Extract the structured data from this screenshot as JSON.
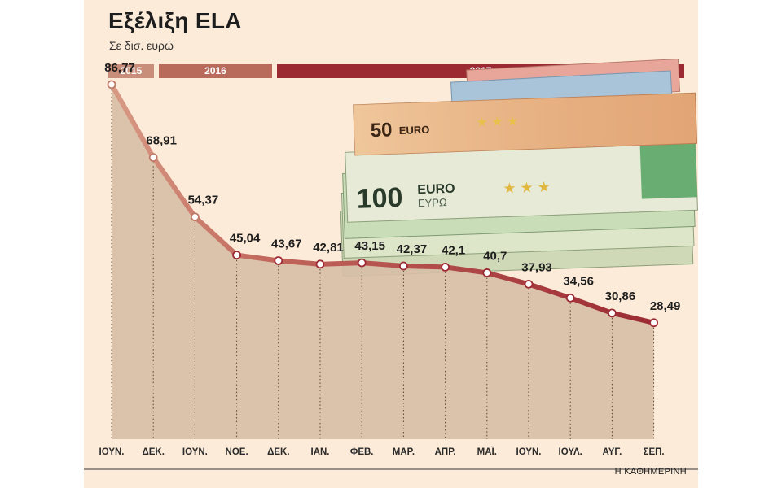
{
  "chart_data": {
    "type": "area",
    "title": "Εξέλιξη ELA",
    "subtitle": "Σε δισ. ευρώ",
    "years": [
      {
        "label": "2015",
        "start": 0,
        "end": 0
      },
      {
        "label": "2016",
        "start": 1,
        "end": 3
      },
      {
        "label": "2017",
        "start": 4,
        "end": 13
      }
    ],
    "categories": [
      "ΙΟΥΝ.",
      "ΔΕΚ.",
      "ΙΟΥΝ.",
      "ΝΟΕ.",
      "ΔΕΚ.",
      "ΙΑΝ.",
      "ΦΕΒ.",
      "ΜΑΡ.",
      "ΑΠΡ.",
      "ΜΑΪ.",
      "ΙΟΥΝ.",
      "ΙΟΥΛ.",
      "ΑΥΓ.",
      "ΣΕΠ."
    ],
    "values": [
      86.77,
      68.91,
      54.37,
      45.04,
      43.67,
      42.81,
      43.15,
      42.37,
      42.1,
      40.7,
      37.93,
      34.56,
      30.86,
      28.49
    ],
    "value_labels": [
      "86,77",
      "68,91",
      "54,37",
      "45,04",
      "43,67",
      "42,81",
      "43,15",
      "42,37",
      "42,1",
      "40,7",
      "37,93",
      "34,56",
      "30,86",
      "28,49"
    ],
    "ylim": [
      0,
      95
    ],
    "xlabel": "",
    "ylabel": "",
    "grid": "vertical dotted",
    "colors": {
      "background": "#fcebd9",
      "area_fill": "#d8bea6",
      "line_start": "#d89a84",
      "line_end": "#9c2a33",
      "year_2015": "#c88e7a",
      "year_2016": "#b86a5b",
      "year_2017": "#9c2a33"
    }
  },
  "illustration": {
    "description_icon": "euro-banknotes-icon",
    "notes": [
      "50 EURO",
      "100 EURO"
    ]
  },
  "credit": "Η ΚΑΘΗΜΕΡΙΝΗ"
}
